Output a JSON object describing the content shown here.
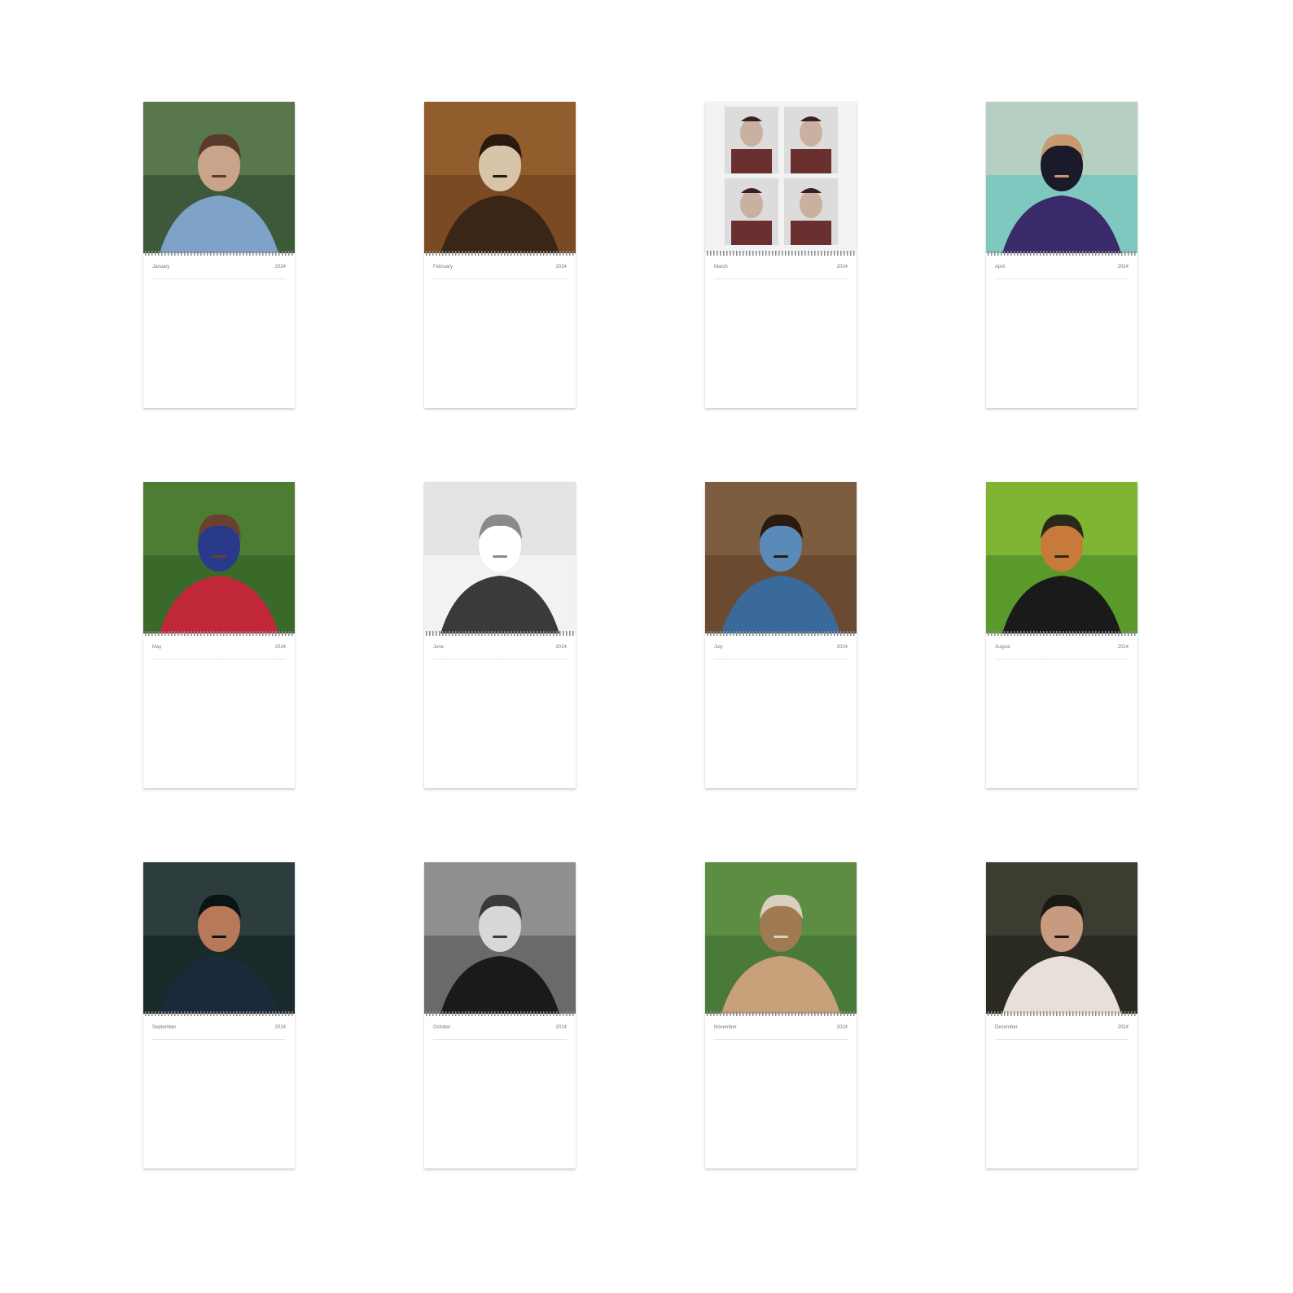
{
  "months": [
    {
      "name": "January",
      "year": "2024",
      "palette": [
        "#3c5a3a",
        "#6a8a5a",
        "#7fa3c8",
        "#c9a48a",
        "#5a3a2a"
      ],
      "scene": "hoodie"
    },
    {
      "name": "February",
      "year": "2024",
      "palette": [
        "#7a4a22",
        "#a06a36",
        "#3a2616",
        "#d8c4a8",
        "#2a1a10"
      ],
      "scene": "yawn"
    },
    {
      "name": "March",
      "year": "2024",
      "palette": [
        "#dcdcdc",
        "#c9b0a0",
        "#3a2020",
        "#6a3030",
        "#f2f2f2"
      ],
      "scene": "strip"
    },
    {
      "name": "April",
      "year": "2024",
      "palette": [
        "#7fc8c0",
        "#d9d4c4",
        "#3a2a6a",
        "#1a1a2a",
        "#c89a70"
      ],
      "scene": "sofa"
    },
    {
      "name": "May",
      "year": "2024",
      "palette": [
        "#3a6a2a",
        "#5a8a3a",
        "#c0283a",
        "#2a3a8a",
        "#6a4030"
      ],
      "scene": "grass"
    },
    {
      "name": "June",
      "year": "2024",
      "palette": [
        "#f2f2f2",
        "#d8d8d8",
        "#3a3a3a",
        "#ffffff",
        "#8a8a8a"
      ],
      "scene": "bw-wall"
    },
    {
      "name": "July",
      "year": "2024",
      "palette": [
        "#6a4a30",
        "#8a6a4a",
        "#3a6a9a",
        "#5a8ab8",
        "#2a1a10"
      ],
      "scene": "denim"
    },
    {
      "name": "August",
      "year": "2024",
      "palette": [
        "#5a9a2a",
        "#9ac83a",
        "#1a1a1a",
        "#c87a3a",
        "#2a2a1a"
      ],
      "scene": "green"
    },
    {
      "name": "September",
      "year": "2024",
      "palette": [
        "#1a2a2a",
        "#3a4a4a",
        "#1a2a3a",
        "#b8785a",
        "#0a1414"
      ],
      "scene": "car"
    },
    {
      "name": "October",
      "year": "2024",
      "palette": [
        "#6a6a6a",
        "#a8a8a8",
        "#1a1a1a",
        "#d8d8d8",
        "#3a3a3a"
      ],
      "scene": "bw-jacket"
    },
    {
      "name": "November",
      "year": "2024",
      "palette": [
        "#4a7a3a",
        "#6a9a4a",
        "#c8a07a",
        "#a07a50",
        "#d8d0c0"
      ],
      "scene": "coat"
    },
    {
      "name": "December",
      "year": "2024",
      "palette": [
        "#2a2a22",
        "#4a4a3a",
        "#e8e0d8",
        "#c89a80",
        "#1a1a14"
      ],
      "scene": "sweater"
    }
  ]
}
